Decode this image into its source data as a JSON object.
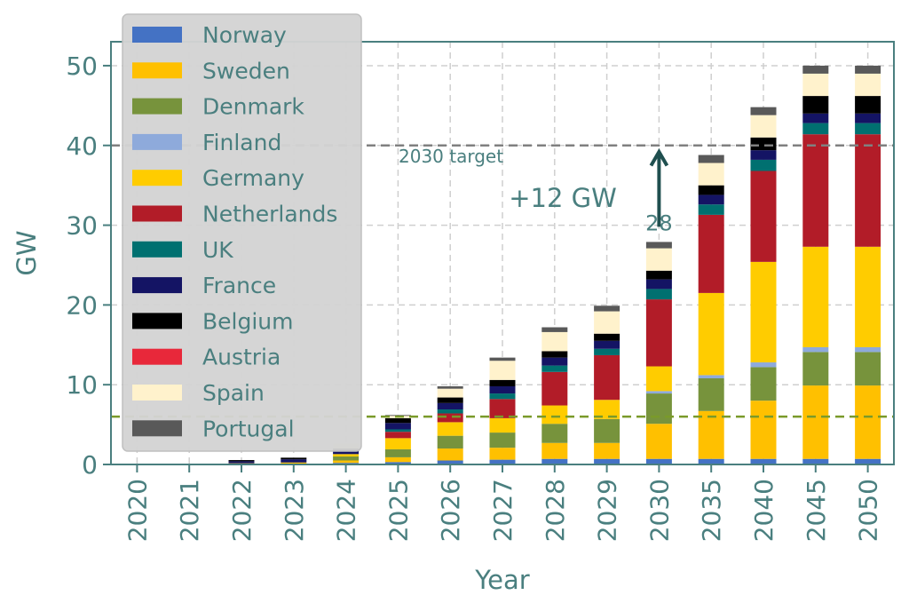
{
  "chart_data": {
    "type": "bar",
    "stacked": true,
    "xlabel": "Year",
    "ylabel": "GW",
    "ylim": [
      0,
      53
    ],
    "yticks": [
      0,
      10,
      20,
      30,
      40,
      50
    ],
    "grid": true,
    "legend_position": "top-left",
    "categories": [
      "2020",
      "2021",
      "2022",
      "2023",
      "2024",
      "2025",
      "2026",
      "2027",
      "2028",
      "2029",
      "2030",
      "2035",
      "2040",
      "2045",
      "2050"
    ],
    "series": [
      {
        "name": "Norway",
        "color": "#4472c4",
        "values": [
          0,
          0,
          0.05,
          0.1,
          0.2,
          0.3,
          0.5,
          0.6,
          0.7,
          0.7,
          0.7,
          0.7,
          0.7,
          0.7,
          0.7
        ]
      },
      {
        "name": "Sweden",
        "color": "#ffc000",
        "values": [
          0,
          0,
          0.1,
          0.15,
          0.3,
          0.6,
          1.5,
          1.5,
          2.0,
          2.0,
          4.4,
          6.0,
          7.3,
          9.2,
          9.2
        ]
      },
      {
        "name": "Denmark",
        "color": "#77933c",
        "values": [
          0,
          0,
          0,
          0,
          0.5,
          1.0,
          1.6,
          1.9,
          2.4,
          3.0,
          3.8,
          4.1,
          4.2,
          4.2,
          4.2
        ]
      },
      {
        "name": "Finland",
        "color": "#8eaadb",
        "values": [
          0,
          0,
          0,
          0,
          0,
          0,
          0,
          0,
          0,
          0,
          0.3,
          0.4,
          0.6,
          0.6,
          0.6
        ]
      },
      {
        "name": "Germany",
        "color": "#ffcc00",
        "values": [
          0,
          0,
          0,
          0,
          0.3,
          1.4,
          1.7,
          1.8,
          2.3,
          2.4,
          3.1,
          10.3,
          12.6,
          12.6,
          12.6
        ]
      },
      {
        "name": "Netherlands",
        "color": "#b21c28",
        "values": [
          0,
          0,
          0,
          0,
          0,
          0.8,
          1.1,
          2.4,
          4.2,
          5.6,
          8.4,
          9.8,
          11.4,
          14.1,
          14.1
        ]
      },
      {
        "name": "UK",
        "color": "#007070",
        "values": [
          0,
          0,
          0,
          0,
          0,
          0.3,
          0.5,
          0.7,
          0.8,
          0.8,
          1.3,
          1.3,
          1.4,
          1.4,
          1.4
        ]
      },
      {
        "name": "France",
        "color": "#141464",
        "values": [
          0,
          0,
          0.25,
          0.4,
          0.4,
          0.8,
          0.8,
          0.9,
          1.0,
          1.0,
          1.2,
          1.2,
          1.2,
          1.2,
          1.2
        ]
      },
      {
        "name": "Belgium",
        "color": "#000000",
        "values": [
          0,
          0,
          0.15,
          0.2,
          0.3,
          0.6,
          0.7,
          0.8,
          0.8,
          0.9,
          1.1,
          1.2,
          1.6,
          2.2,
          2.2
        ]
      },
      {
        "name": "Austria",
        "color": "#e8283a",
        "values": [
          0,
          0,
          0,
          0,
          0,
          0,
          0,
          0,
          0,
          0,
          0,
          0,
          0,
          0,
          0
        ]
      },
      {
        "name": "Spain",
        "color": "#fff2cc",
        "values": [
          0,
          0,
          0,
          0,
          0.6,
          0.3,
          1.1,
          2.4,
          2.4,
          2.8,
          2.8,
          2.8,
          2.8,
          2.8,
          2.8
        ]
      },
      {
        "name": "Portugal",
        "color": "#595959",
        "values": [
          0,
          0,
          0,
          0,
          0,
          0.1,
          0.3,
          0.4,
          0.6,
          0.7,
          0.8,
          1.0,
          1.0,
          1.0,
          1.0
        ]
      }
    ],
    "reference_lines": [
      {
        "value": 40,
        "label": "2030 target",
        "color": "#808080"
      },
      {
        "value": 6,
        "label": "",
        "color": "#7a9a2a"
      }
    ],
    "annotations": [
      {
        "text": "+12 GW",
        "x": "2030"
      },
      {
        "text": "28",
        "x": "2030",
        "y": 28
      }
    ]
  }
}
